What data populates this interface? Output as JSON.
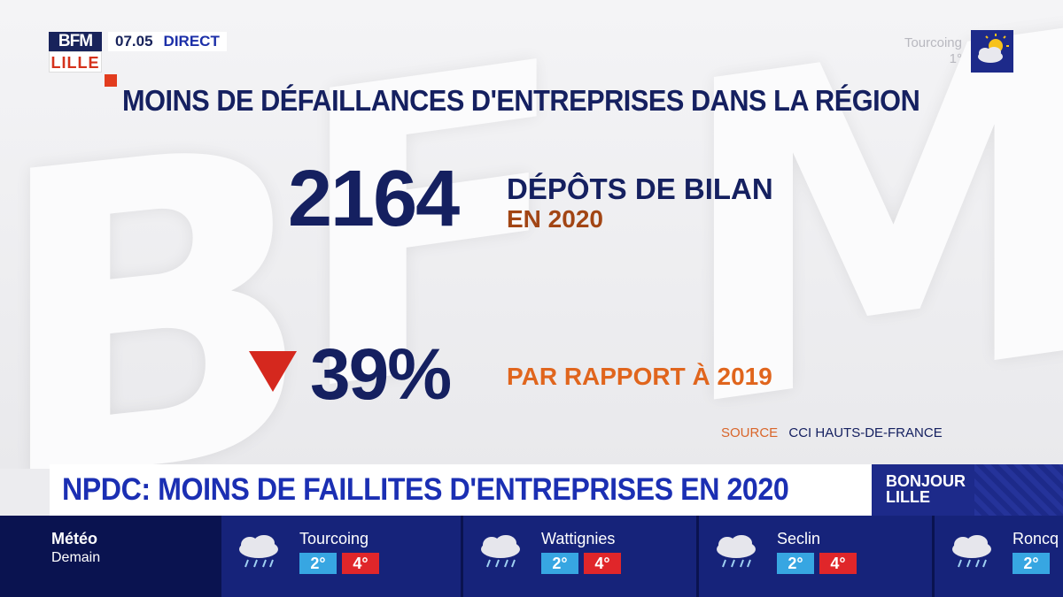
{
  "channel": {
    "logo_top": "BFM",
    "logo_bottom": "LILLE",
    "time": "07.05",
    "live": "DIRECT"
  },
  "top_weather": {
    "city": "Tourcoing",
    "temp": "1°",
    "icon": "sun-cloud-icon"
  },
  "graphic": {
    "headline": "MOINS DE DÉFAILLANCES D'ENTREPRISES DANS LA RÉGION",
    "count": "2164",
    "count_label": "DÉPÔTS DE BILAN",
    "count_year": "EN 2020",
    "change": "39%",
    "change_direction_icon": "down-triangle-icon",
    "change_label": "PAR RAPPORT À 2019",
    "source_label": "SOURCE",
    "source_value": "CCI HAUTS-DE-FRANCE",
    "colors": {
      "navy": "#152060",
      "orange": "#e0651d",
      "red": "#d5281e"
    }
  },
  "banner": {
    "text": "NPDC: MOINS DE FAILLITES D'ENTREPRISES EN 2020",
    "show_line1": "BONJOUR",
    "show_line2": "LILLE"
  },
  "weather_strip": {
    "title": "Météo",
    "subtitle": "Demain",
    "cities": [
      {
        "name": "Tourcoing",
        "min": "2°",
        "max": "4°",
        "icon": "rain-cloud-icon"
      },
      {
        "name": "Wattignies",
        "min": "2°",
        "max": "4°",
        "icon": "rain-cloud-icon"
      },
      {
        "name": "Seclin",
        "min": "2°",
        "max": "4°",
        "icon": "rain-cloud-icon"
      },
      {
        "name": "Roncq",
        "min": "2°",
        "max": "",
        "icon": "rain-cloud-icon"
      }
    ]
  }
}
